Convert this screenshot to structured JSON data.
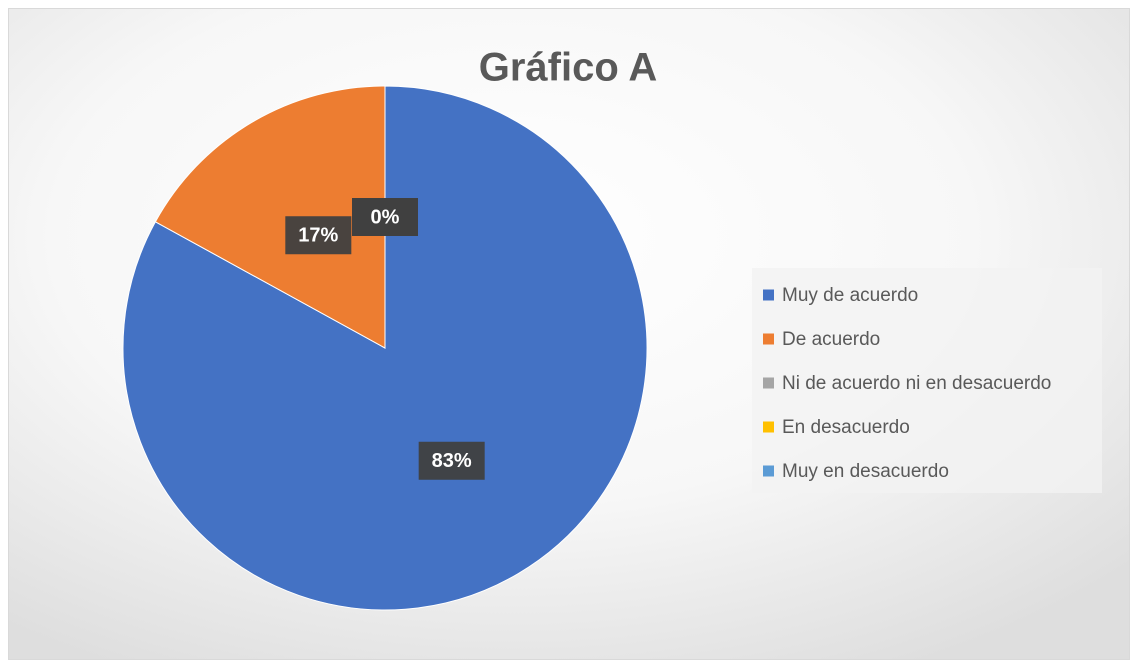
{
  "chart_data": {
    "type": "pie",
    "title": "Gráfico A",
    "categories": [
      "Muy de acuerdo",
      "De acuerdo",
      "Ni de acuerdo ni en desacuerdo",
      "En desacuerdo",
      "Muy en desacuerdo"
    ],
    "values": [
      83,
      17,
      0,
      0,
      0
    ],
    "value_labels": [
      "83%",
      "17%",
      "0%",
      "0%",
      "0%"
    ],
    "colors": [
      "#4472c4",
      "#ed7d31",
      "#a5a5a5",
      "#ffc000",
      "#5b9bd5"
    ],
    "legend": "right"
  }
}
